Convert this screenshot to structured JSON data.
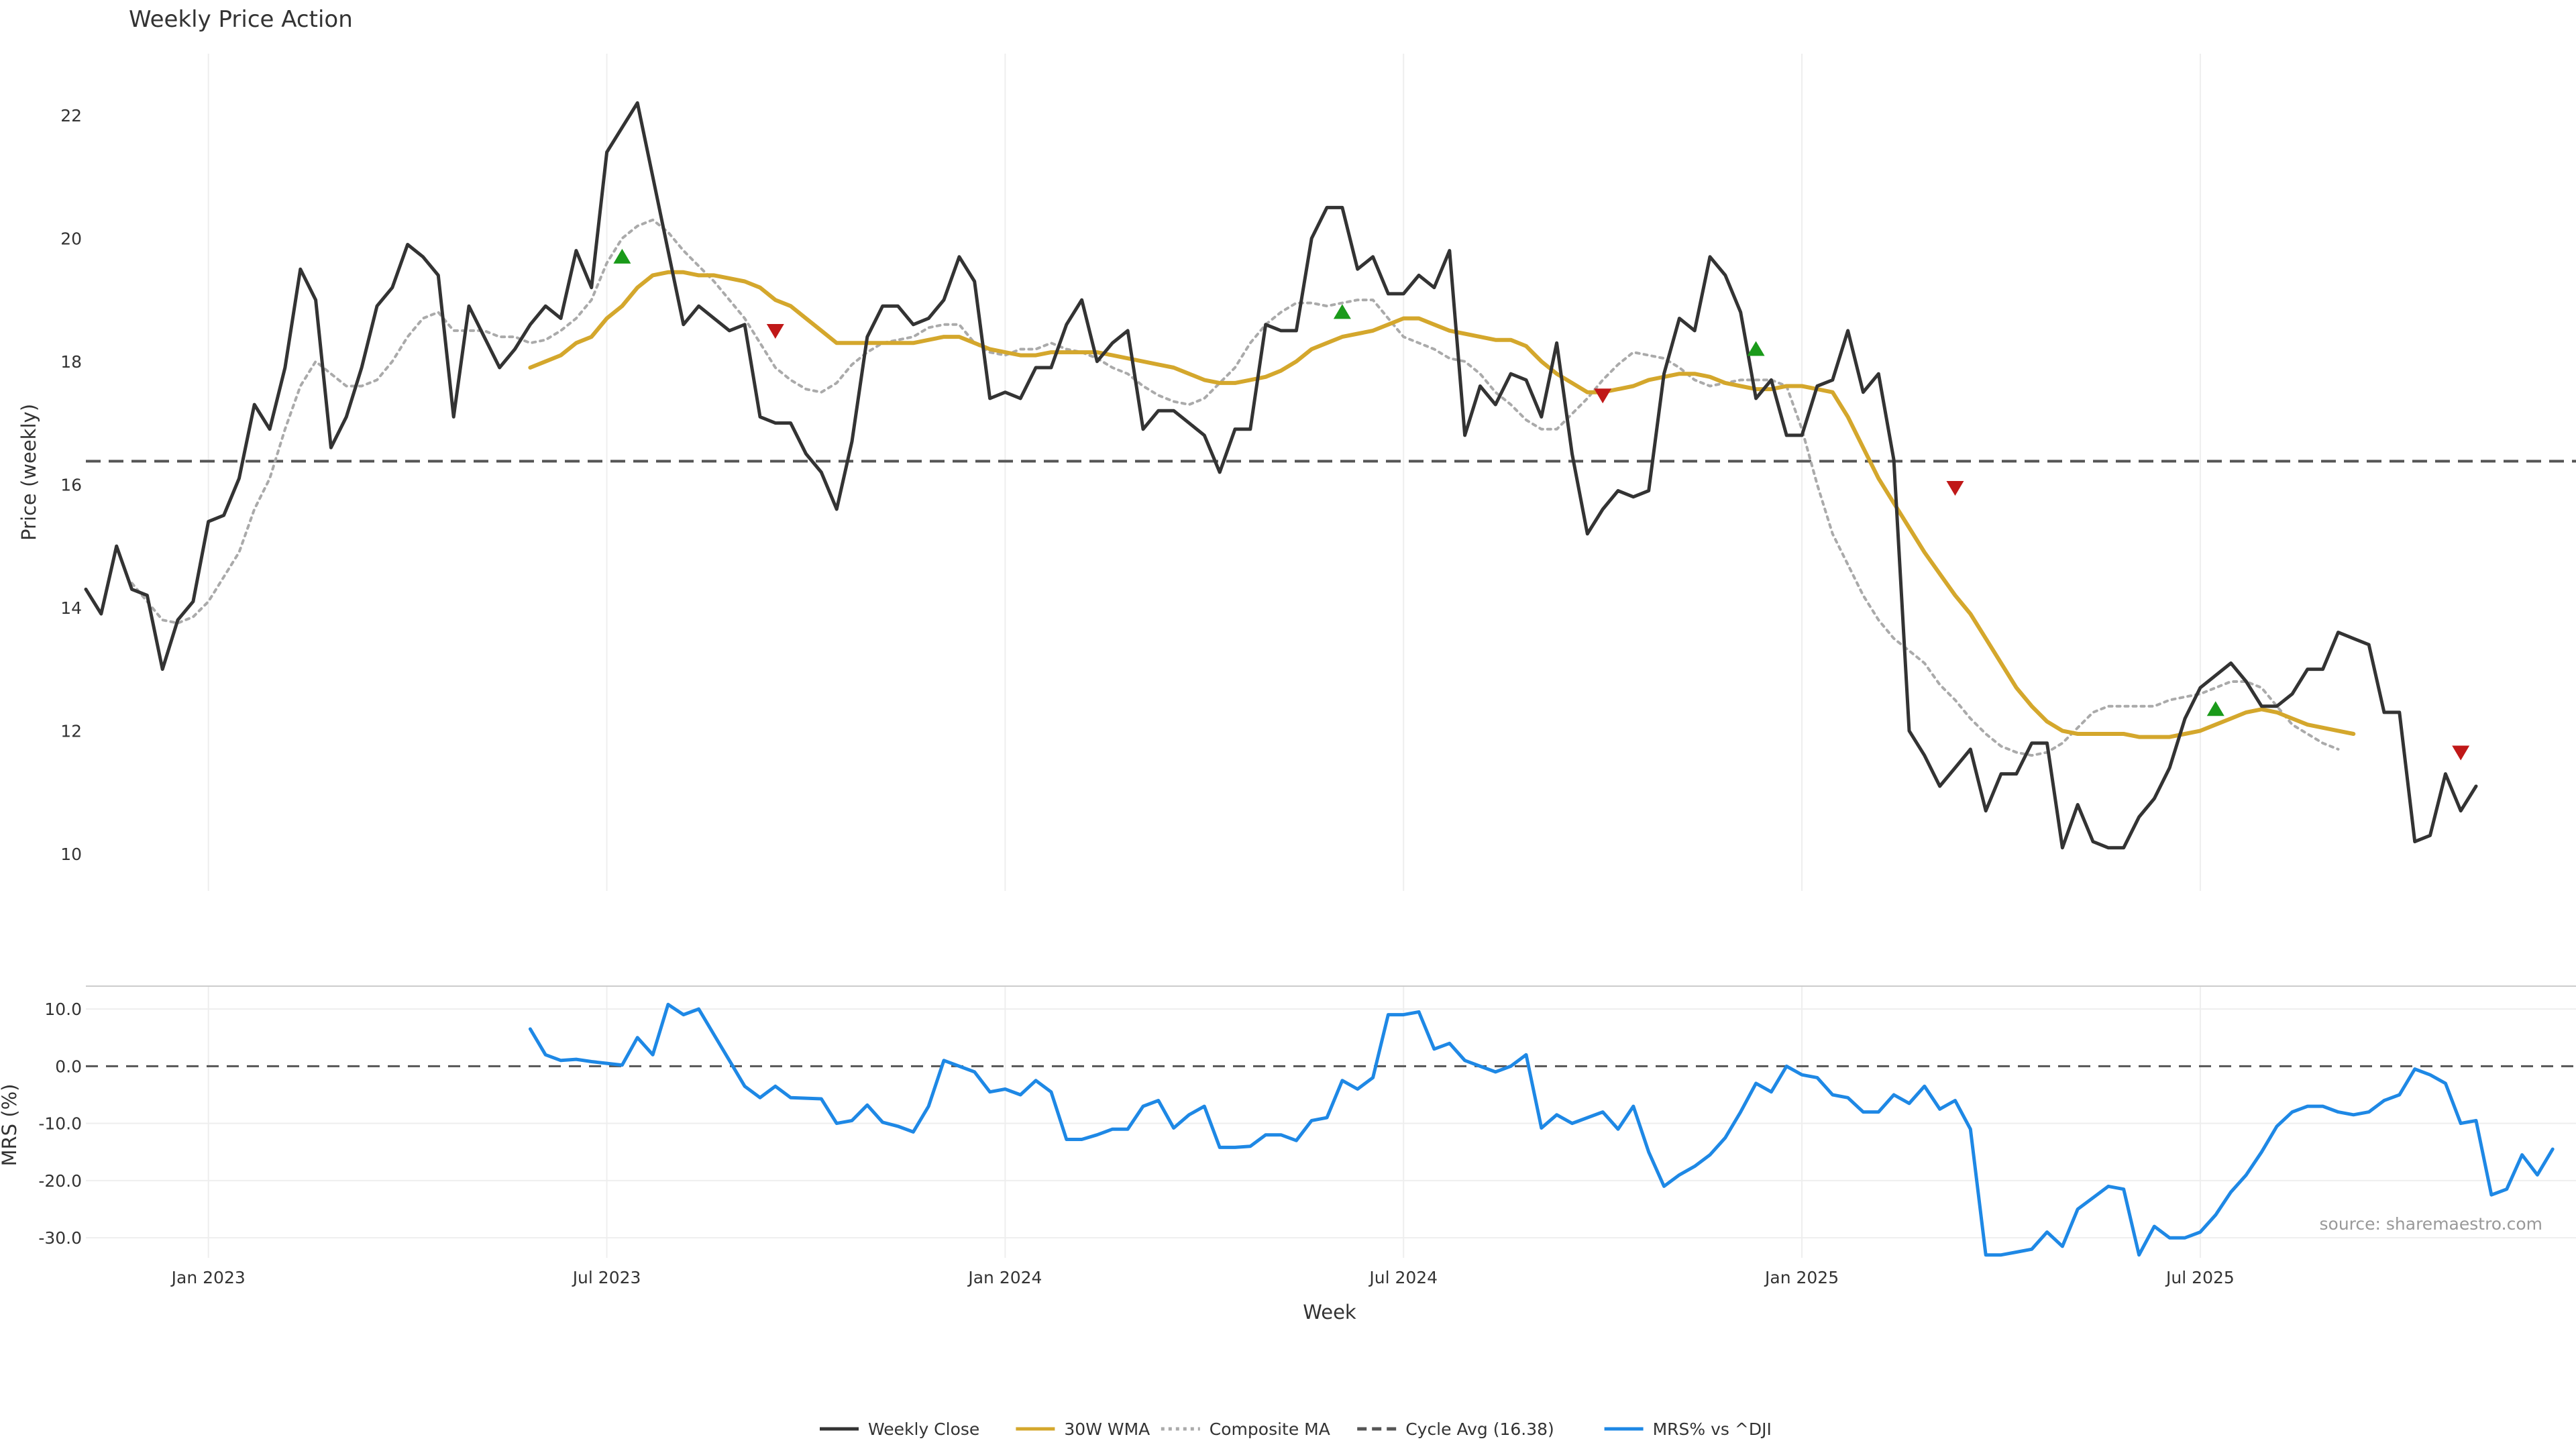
{
  "chart_data": {
    "type": "line",
    "title": "Weekly Price Action",
    "source_note": "source: sharemaestro.com",
    "xlabel": "Week",
    "x_ticks": [
      "Jan 2023",
      "Jul 2023",
      "Jan 2024",
      "Jul 2024",
      "Jan 2025",
      "Jul 2025"
    ],
    "x_tick_weeks": [
      8,
      34,
      60,
      86,
      112,
      138
    ],
    "weeks_total": 155,
    "legend_placement": "bottom-center",
    "grid": true,
    "price_panel": {
      "ylabel": "Price (weekly)",
      "ylim": [
        9.4,
        23.0
      ],
      "yticks": [
        "10",
        "12",
        "14",
        "16",
        "18",
        "20",
        "22"
      ],
      "ytick_values": [
        10,
        12,
        14,
        16,
        18,
        20,
        22
      ],
      "cycle_avg": 16.38,
      "series": [
        {
          "name": "Weekly Close",
          "color": "#333333",
          "style": "solid",
          "start_week": 0,
          "values": [
            14.3,
            13.9,
            15.0,
            14.3,
            14.2,
            13.0,
            13.8,
            14.1,
            15.4,
            15.5,
            16.1,
            17.3,
            16.9,
            17.9,
            19.5,
            19.0,
            16.6,
            17.1,
            17.9,
            18.9,
            19.2,
            19.9,
            19.7,
            19.4,
            17.1,
            18.9,
            18.4,
            17.9,
            18.2,
            18.6,
            18.9,
            18.7,
            19.8,
            19.2,
            21.4,
            21.8,
            22.2,
            21.0,
            19.8,
            18.6,
            18.9,
            18.7,
            18.5,
            18.6,
            17.1,
            17.0,
            17.0,
            16.5,
            16.2,
            15.6,
            16.7,
            18.4,
            18.9,
            18.9,
            18.6,
            18.7,
            19.0,
            19.7,
            19.3,
            17.4,
            17.5,
            17.4,
            17.9,
            17.9,
            18.6,
            19.0,
            18.0,
            18.3,
            18.5,
            16.9,
            17.2,
            17.2,
            17.0,
            16.8,
            16.2,
            16.9,
            16.9,
            18.6,
            18.5,
            18.5,
            20.0,
            20.5,
            20.5,
            19.5,
            19.7,
            19.1,
            19.1,
            19.4,
            19.2,
            19.8,
            16.8,
            17.6,
            17.3,
            17.8,
            17.7,
            17.1,
            18.3,
            16.5,
            15.2,
            15.6,
            15.9,
            15.8,
            15.9,
            17.8,
            18.7,
            18.5,
            19.7,
            19.4,
            18.8,
            17.4,
            17.7,
            16.8,
            16.8,
            17.6,
            17.7,
            18.5,
            17.5,
            17.8,
            16.4,
            12.0,
            11.6,
            11.1,
            11.4,
            11.7,
            10.7,
            11.3,
            11.3,
            11.8,
            11.8,
            10.1,
            10.8,
            10.2,
            10.1,
            10.1,
            10.6,
            10.9,
            11.4,
            12.2,
            12.7,
            12.9,
            13.1,
            12.8,
            12.4,
            12.4,
            12.6,
            13.0,
            13.0,
            13.6,
            13.5,
            13.4,
            12.3,
            12.3,
            10.2,
            10.3,
            11.3,
            10.7,
            11.1
          ]
        },
        {
          "name": "30W WMA",
          "color": "#d4a72c",
          "style": "solid",
          "start_week": 29,
          "values": [
            17.9,
            18.0,
            18.1,
            18.3,
            18.4,
            18.7,
            18.9,
            19.2,
            19.4,
            19.45,
            19.45,
            19.4,
            19.4,
            19.35,
            19.3,
            19.2,
            19.0,
            18.9,
            18.7,
            18.5,
            18.3,
            18.3,
            18.3,
            18.3,
            18.3,
            18.3,
            18.35,
            18.4,
            18.4,
            18.3,
            18.2,
            18.15,
            18.1,
            18.1,
            18.15,
            18.15,
            18.15,
            18.15,
            18.1,
            18.05,
            18.0,
            17.95,
            17.9,
            17.8,
            17.7,
            17.65,
            17.65,
            17.7,
            17.75,
            17.85,
            18.0,
            18.2,
            18.3,
            18.4,
            18.45,
            18.5,
            18.6,
            18.7,
            18.7,
            18.6,
            18.5,
            18.45,
            18.4,
            18.35,
            18.35,
            18.25,
            18.0,
            17.8,
            17.65,
            17.5,
            17.5,
            17.55,
            17.6,
            17.7,
            17.75,
            17.8,
            17.8,
            17.75,
            17.65,
            17.6,
            17.55,
            17.55,
            17.6,
            17.6,
            17.55,
            17.5,
            17.1,
            16.6,
            16.1,
            15.7,
            15.3,
            14.9,
            14.55,
            14.2,
            13.9,
            13.5,
            13.1,
            12.7,
            12.4,
            12.15,
            12.0,
            11.95,
            11.95,
            11.95,
            11.95,
            11.9,
            11.9,
            11.9,
            11.95,
            12.0,
            12.1,
            12.2,
            12.3,
            12.35,
            12.3,
            12.2,
            12.1,
            12.05,
            12.0,
            11.95
          ]
        },
        {
          "name": "Composite MA",
          "color": "#aaaaaa",
          "style": "dotted",
          "start_week": 3,
          "values": [
            14.4,
            14.1,
            13.8,
            13.75,
            13.85,
            14.1,
            14.5,
            14.9,
            15.6,
            16.1,
            16.9,
            17.6,
            18.0,
            17.8,
            17.6,
            17.6,
            17.7,
            18.0,
            18.4,
            18.7,
            18.8,
            18.5,
            18.5,
            18.5,
            18.4,
            18.4,
            18.3,
            18.35,
            18.5,
            18.7,
            19.0,
            19.6,
            20.0,
            20.2,
            20.3,
            20.1,
            19.8,
            19.55,
            19.3,
            19.0,
            18.7,
            18.3,
            17.9,
            17.7,
            17.55,
            17.5,
            17.65,
            17.95,
            18.15,
            18.3,
            18.35,
            18.4,
            18.55,
            18.6,
            18.6,
            18.3,
            18.15,
            18.1,
            18.2,
            18.2,
            18.3,
            18.2,
            18.15,
            18.05,
            17.9,
            17.8,
            17.6,
            17.45,
            17.35,
            17.3,
            17.4,
            17.65,
            17.9,
            18.3,
            18.6,
            18.8,
            18.95,
            18.95,
            18.9,
            18.95,
            19.0,
            19.0,
            18.7,
            18.4,
            18.3,
            18.2,
            18.05,
            18.0,
            17.8,
            17.5,
            17.3,
            17.05,
            16.9,
            16.9,
            17.15,
            17.4,
            17.7,
            17.95,
            18.15,
            18.1,
            18.05,
            17.9,
            17.7,
            17.6,
            17.65,
            17.7,
            17.7,
            17.7,
            17.6,
            16.9,
            16.0,
            15.2,
            14.7,
            14.2,
            13.8,
            13.5,
            13.3,
            13.1,
            12.75,
            12.5,
            12.2,
            11.95,
            11.75,
            11.65,
            11.6,
            11.65,
            11.8,
            12.05,
            12.3,
            12.4,
            12.4,
            12.4,
            12.4,
            12.5,
            12.55,
            12.6,
            12.7,
            12.8,
            12.8,
            12.7,
            12.4,
            12.1,
            11.95,
            11.8,
            11.7
          ]
        }
      ],
      "buy_signals": [
        [
          35,
          19.7
        ],
        [
          82,
          18.8
        ],
        [
          109,
          18.2
        ],
        [
          139,
          12.35
        ]
      ],
      "sell_signals": [
        [
          45,
          18.5
        ],
        [
          99,
          17.45
        ],
        [
          122,
          15.95
        ],
        [
          155,
          11.65
        ]
      ]
    },
    "mrs_panel": {
      "ylabel": "MRS (%)",
      "ylim": [
        -33.5,
        14.0
      ],
      "yticks": [
        "10.0",
        "0.0",
        "-10.0",
        "-20.0",
        "-30.0"
      ],
      "ytick_values": [
        10,
        0,
        -10,
        -20,
        -30
      ],
      "series": [
        {
          "name": "MRS% vs ^DJI",
          "color": "#1e88e5",
          "style": "solid",
          "start_week": 29,
          "values": [
            6.5,
            2.0,
            1.0,
            1.2,
            0.8,
            0.5,
            0.2,
            5.0,
            2.0,
            10.8,
            9.0,
            10.0,
            5.5,
            1.0,
            -3.5,
            -5.5,
            -3.5,
            -5.5,
            -5.6,
            -5.7,
            -10.0,
            -9.5,
            -6.8,
            -9.8,
            -10.5,
            -11.5,
            -7.0,
            1.0,
            0.0,
            -1.0,
            -4.5,
            -4.0,
            -5.0,
            -2.5,
            -4.5,
            -12.8,
            -12.8,
            -12.0,
            -11.0,
            -11.0,
            -7.0,
            -6.0,
            -10.8,
            -8.5,
            -7.0,
            -14.2,
            -14.2,
            -14.0,
            -12.0,
            -12.0,
            -13.0,
            -9.5,
            -9.0,
            -2.5,
            -4.0,
            -2.0,
            9.0,
            9.0,
            9.5,
            3.0,
            4.0,
            1.0,
            0.0,
            -1.0,
            0.0,
            2.0,
            -10.8,
            -8.5,
            -10.0,
            -9.0,
            -8.0,
            -11.0,
            -7.0,
            -15.0,
            -21.0,
            -19.0,
            -17.5,
            -15.5,
            -12.5,
            -8.0,
            -3.0,
            -4.5,
            0.0,
            -1.5,
            -2.0,
            -5.0,
            -5.5,
            -8.0,
            -8.0,
            -5.0,
            -6.5,
            -3.5,
            -7.5,
            -6.0,
            -11.0,
            -33.0,
            -33.0,
            -32.5,
            -32.0,
            -29.0,
            -31.5,
            -25.0,
            -23.0,
            -21.0,
            -21.5,
            -33.0,
            -28.0,
            -30.0,
            -30.0,
            -29.0,
            -26.0,
            -22.0,
            -19.0,
            -15.0,
            -10.5,
            -8.0,
            -7.0,
            -7.0,
            -8.0,
            -8.5,
            -8.0,
            -6.0,
            -5.0,
            -0.5,
            -1.5,
            -3.0,
            -10.0,
            -9.5,
            -22.5,
            -21.5,
            -15.5,
            -19.0,
            -14.5
          ]
        }
      ]
    },
    "legend": [
      {
        "label": "Weekly Close",
        "color": "#333333",
        "style": "solid"
      },
      {
        "label": "30W WMA",
        "color": "#d4a72c",
        "style": "solid"
      },
      {
        "label": "Composite MA",
        "color": "#aaaaaa",
        "style": "dotted"
      },
      {
        "label": "Cycle Avg (16.38)",
        "color": "#555555",
        "style": "dashed"
      },
      {
        "label": "MRS% vs ^DJI",
        "color": "#1e88e5",
        "style": "solid"
      }
    ]
  }
}
